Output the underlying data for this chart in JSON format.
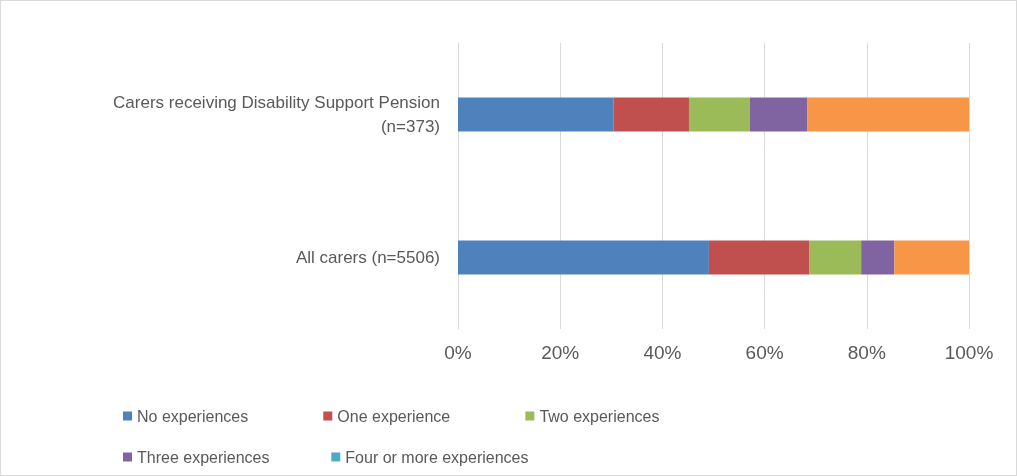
{
  "chart_data": {
    "type": "bar",
    "orientation": "horizontal",
    "stacked": true,
    "categories": [
      "Carers receiving Disability Support Pension (n=373)",
      "All carers (n=5506)"
    ],
    "series": [
      {
        "name": "No experiences",
        "color": "#4f81bd",
        "values": [
          30.4,
          49.1
        ]
      },
      {
        "name": "One experience",
        "color": "#c0504d",
        "values": [
          14.8,
          19.7
        ]
      },
      {
        "name": "Two experiences",
        "color": "#9bbb59",
        "values": [
          11.9,
          10.1
        ]
      },
      {
        "name": "Three experiences",
        "color": "#8064a2",
        "values": [
          11.3,
          6.5
        ]
      },
      {
        "name": "Four or more experiences",
        "color": "#4bacc6",
        "values": [
          null,
          null
        ]
      },
      {
        "color": "#f79646",
        "values": [
          31.6,
          14.6
        ]
      }
    ],
    "xlim": [
      0,
      100
    ],
    "xticks": [
      {
        "value": 0,
        "label": "0%"
      },
      {
        "value": 20,
        "label": "20%"
      },
      {
        "value": 40,
        "label": "40%"
      },
      {
        "value": 60,
        "label": "60%"
      },
      {
        "value": 80,
        "label": "80%"
      },
      {
        "value": 100,
        "label": "100%"
      }
    ],
    "grid": "x",
    "legend": "bottom"
  }
}
